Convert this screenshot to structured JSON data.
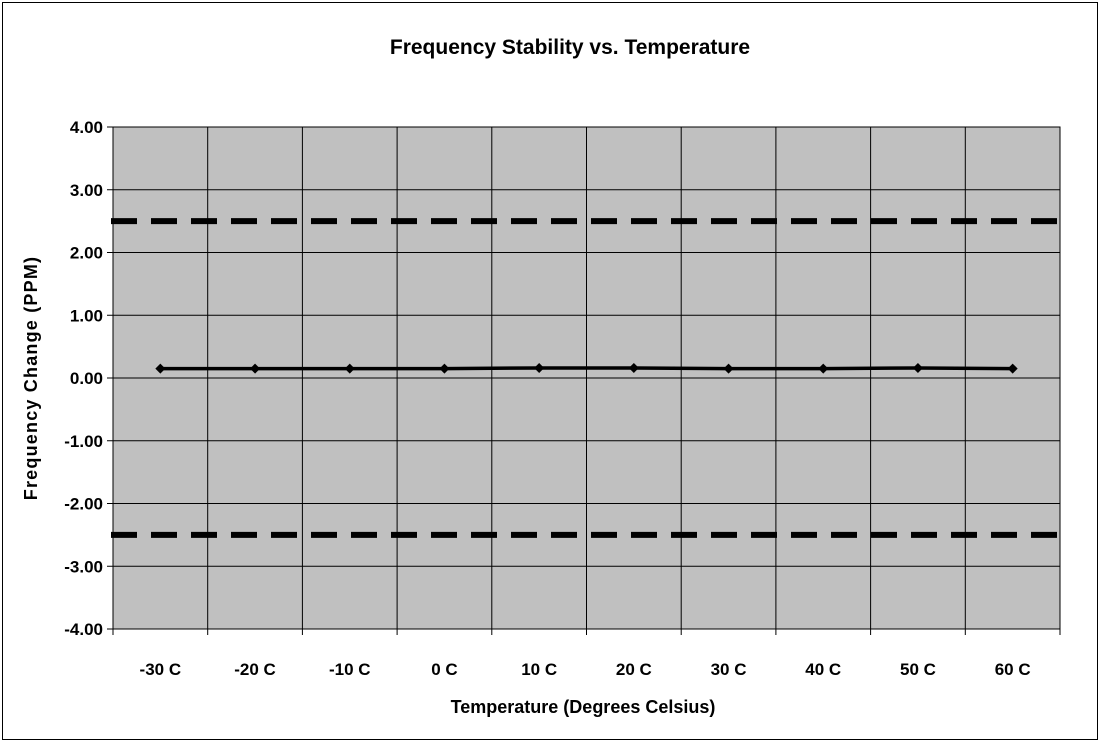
{
  "chart_data": {
    "type": "line",
    "title": "Frequency Stability vs. Temperature",
    "xlabel": "Temperature (Degrees Celsius)",
    "ylabel": "Frequency Change (PPM)",
    "categories": [
      "-30 C",
      "-20 C",
      "-10 C",
      "0 C",
      "10 C",
      "20 C",
      "30 C",
      "40 C",
      "50 C",
      "60 C"
    ],
    "y_ticks": [
      "4.00",
      "3.00",
      "2.00",
      "1.00",
      "0.00",
      "-1.00",
      "-2.00",
      "-3.00",
      "-4.00"
    ],
    "ylim": [
      -4,
      4
    ],
    "grid": true,
    "legend": "none",
    "series": [
      {
        "values": [
          0.15,
          0.15,
          0.15,
          0.15,
          0.16,
          0.16,
          0.15,
          0.15,
          0.16,
          0.15
        ],
        "color": "#000000",
        "marker": "diamond"
      }
    ],
    "limit_lines": [
      {
        "value": 2.5,
        "style": "dashed",
        "color": "#000000"
      },
      {
        "value": -2.5,
        "style": "dashed",
        "color": "#000000"
      }
    ],
    "plot_background": "#c0c0c0"
  }
}
